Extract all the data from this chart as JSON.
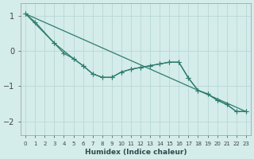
{
  "xlabel": "Humidex (Indice chaleur)",
  "xlim": [
    -0.5,
    23.5
  ],
  "ylim": [
    -2.4,
    1.35
  ],
  "xticks": [
    0,
    1,
    2,
    3,
    4,
    5,
    6,
    7,
    8,
    9,
    10,
    11,
    12,
    13,
    14,
    15,
    16,
    17,
    18,
    19,
    20,
    21,
    22,
    23
  ],
  "yticks": [
    -2,
    -1,
    0,
    1
  ],
  "bg_color": "#d4ecea",
  "grid_color": "#b8d8d8",
  "line_color": "#2e7d6e",
  "line1_x": [
    0,
    1,
    3,
    4,
    5,
    6,
    7,
    8,
    9,
    10,
    11,
    12,
    13,
    14,
    15,
    16,
    17,
    18,
    19,
    20,
    21,
    22,
    23
  ],
  "line1_y": [
    1.05,
    0.82,
    0.22,
    -0.07,
    -0.22,
    -0.42,
    -0.65,
    -0.75,
    -0.75,
    -0.6,
    -0.52,
    -0.47,
    -0.42,
    -0.37,
    -0.32,
    -0.32,
    -0.77,
    -1.12,
    -1.22,
    -1.4,
    -1.52,
    -1.72,
    -1.72
  ],
  "line2_x": [
    0,
    3,
    5,
    6,
    7,
    8,
    9,
    10,
    11,
    12,
    13,
    14,
    15,
    16,
    17,
    18,
    19,
    20,
    21,
    22,
    23
  ],
  "line2_y": [
    1.05,
    0.22,
    -0.22,
    -0.42,
    -0.65,
    -0.75,
    -0.75,
    -0.6,
    -0.52,
    -0.47,
    -0.42,
    -0.37,
    -0.32,
    -0.32,
    -0.77,
    -1.12,
    -1.22,
    -1.4,
    -1.52,
    -1.72,
    -1.72
  ],
  "line3_x": [
    0,
    23
  ],
  "line3_y": [
    1.05,
    -1.72
  ]
}
